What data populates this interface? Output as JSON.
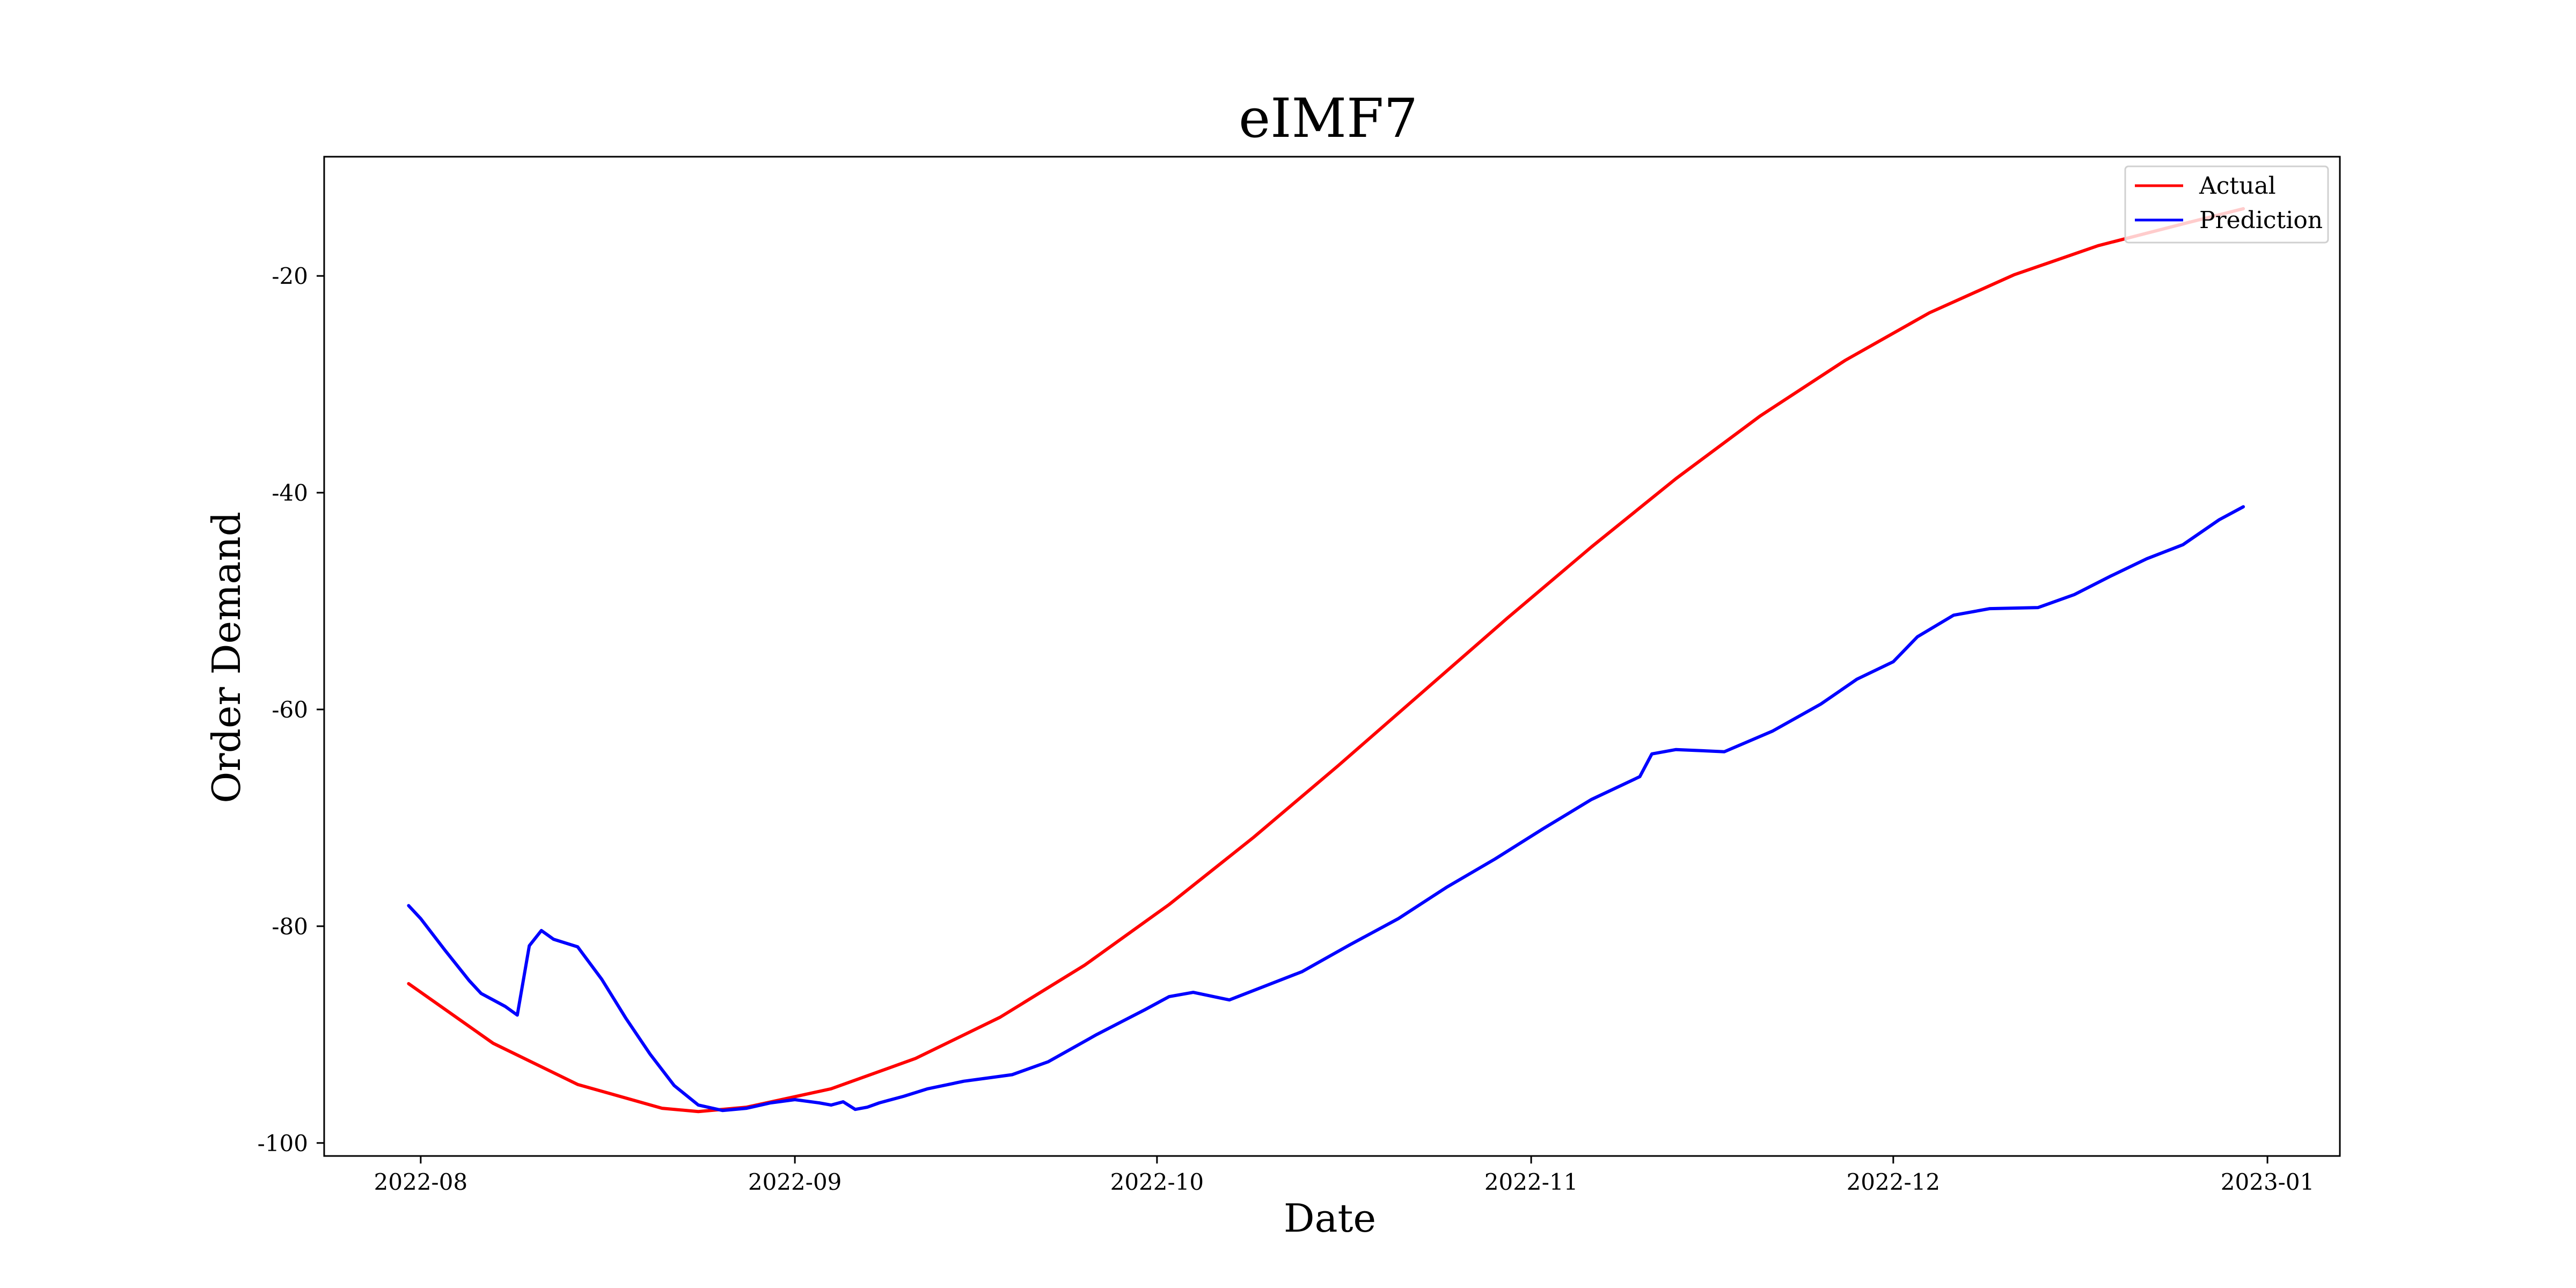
{
  "chart_data": {
    "type": "line",
    "title": "eIMF7",
    "xlabel": "Date",
    "ylabel": "Order Demand",
    "xlim": [
      "2022-07-24",
      "2023-01-07"
    ],
    "ylim": [
      -101.2,
      -9
    ],
    "x_ticks": [
      "2022-08",
      "2022-09",
      "2022-10",
      "2022-11",
      "2022-12",
      "2023-01"
    ],
    "x_tick_dates": [
      "2022-08-01",
      "2022-09-01",
      "2022-10-01",
      "2022-11-01",
      "2022-12-01",
      "2023-01-01"
    ],
    "y_ticks": [
      -20,
      -40,
      -60,
      -80,
      -100
    ],
    "y_tick_labels": [
      "-20",
      "-40",
      "-60",
      "-80",
      "-100"
    ],
    "grid": false,
    "legend_position": "top-right",
    "series": [
      {
        "name": "Actual",
        "color": "#ff0000",
        "x": [
          "2022-07-31",
          "2022-08-07",
          "2022-08-14",
          "2022-08-21",
          "2022-08-24",
          "2022-08-28",
          "2022-09-04",
          "2022-09-11",
          "2022-09-18",
          "2022-09-25",
          "2022-10-02",
          "2022-10-09",
          "2022-10-16",
          "2022-10-23",
          "2022-10-30",
          "2022-11-06",
          "2022-11-13",
          "2022-11-20",
          "2022-11-27",
          "2022-12-04",
          "2022-12-11",
          "2022-12-18",
          "2022-12-25",
          "2022-12-30"
        ],
        "y": [
          -85.3,
          -90.8,
          -94.6,
          -96.8,
          -97.1,
          -96.7,
          -95.0,
          -92.2,
          -88.4,
          -83.6,
          -78.0,
          -71.8,
          -65.2,
          -58.4,
          -51.6,
          -45.0,
          -38.7,
          -32.9,
          -27.8,
          -23.4,
          -19.9,
          -17.2,
          -15.2,
          -13.8
        ]
      },
      {
        "name": "Prediction",
        "color": "#0000ff",
        "x": [
          "2022-07-31",
          "2022-08-01",
          "2022-08-03",
          "2022-08-05",
          "2022-08-06",
          "2022-08-08",
          "2022-08-09",
          "2022-08-10",
          "2022-08-11",
          "2022-08-12",
          "2022-08-14",
          "2022-08-16",
          "2022-08-18",
          "2022-08-20",
          "2022-08-22",
          "2022-08-24",
          "2022-08-26",
          "2022-08-28",
          "2022-08-30",
          "2022-09-01",
          "2022-09-03",
          "2022-09-04",
          "2022-09-05",
          "2022-09-06",
          "2022-09-07",
          "2022-09-08",
          "2022-09-10",
          "2022-09-12",
          "2022-09-15",
          "2022-09-17",
          "2022-09-19",
          "2022-09-22",
          "2022-09-26",
          "2022-09-30",
          "2022-10-02",
          "2022-10-04",
          "2022-10-07",
          "2022-10-10",
          "2022-10-13",
          "2022-10-17",
          "2022-10-21",
          "2022-10-25",
          "2022-10-29",
          "2022-11-02",
          "2022-11-06",
          "2022-11-10",
          "2022-11-11",
          "2022-11-13",
          "2022-11-17",
          "2022-11-21",
          "2022-11-25",
          "2022-11-28",
          "2022-12-01",
          "2022-12-03",
          "2022-12-06",
          "2022-12-09",
          "2022-12-13",
          "2022-12-16",
          "2022-12-19",
          "2022-12-22",
          "2022-12-25",
          "2022-12-28",
          "2022-12-30"
        ],
        "y": [
          -78.1,
          -79.3,
          -82.2,
          -85.0,
          -86.2,
          -87.4,
          -88.2,
          -81.8,
          -80.4,
          -81.2,
          -81.9,
          -84.9,
          -88.5,
          -91.8,
          -94.7,
          -96.5,
          -97.0,
          -96.8,
          -96.3,
          -96.0,
          -96.3,
          -96.5,
          -96.2,
          -96.9,
          -96.7,
          -96.3,
          -95.7,
          -95.0,
          -94.3,
          -94.0,
          -93.7,
          -92.5,
          -90.0,
          -87.7,
          -86.5,
          -86.1,
          -86.8,
          -85.5,
          -84.2,
          -81.7,
          -79.3,
          -76.4,
          -73.8,
          -71.0,
          -68.3,
          -66.2,
          -64.1,
          -63.7,
          -63.9,
          -62.0,
          -59.5,
          -57.2,
          -55.6,
          -53.3,
          -51.3,
          -50.7,
          -50.6,
          -49.4,
          -47.7,
          -46.1,
          -44.8,
          -42.5,
          -41.3
        ]
      }
    ]
  }
}
